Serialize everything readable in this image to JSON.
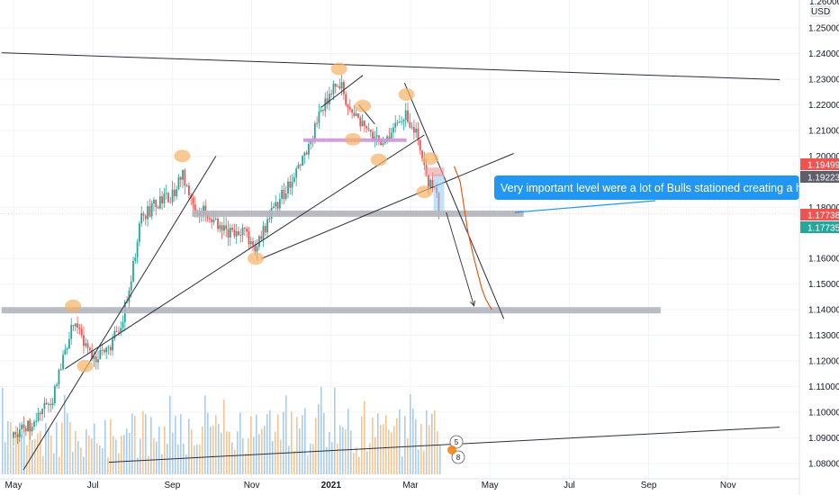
{
  "chart_data": {
    "type": "candlestick",
    "instrument_currency": "USD",
    "y_axis": {
      "range": [
        1.0765,
        1.2625
      ],
      "top_partial_label": "1.26000",
      "currency_label": "USD",
      "ticks": [
        "1.25000",
        "1.24000",
        "1.23000",
        "1.22000",
        "1.21000",
        "1.20000",
        "1.18000",
        "1.16000",
        "1.15000",
        "1.14000",
        "1.13000",
        "1.12000",
        "1.11000",
        "1.10000",
        "1.09000",
        "1.08000"
      ]
    },
    "x_axis": {
      "ticks": [
        {
          "label": "May",
          "bold": false,
          "month_index": 0
        },
        {
          "label": "Jul",
          "bold": false,
          "month_index": 2
        },
        {
          "label": "Sep",
          "bold": false,
          "month_index": 4
        },
        {
          "label": "Nov",
          "bold": false,
          "month_index": 6
        },
        {
          "label": "2021",
          "bold": true,
          "month_index": 8
        },
        {
          "label": "Mar",
          "bold": false,
          "month_index": 10
        },
        {
          "label": "May",
          "bold": false,
          "month_index": 12
        },
        {
          "label": "Jul",
          "bold": false,
          "month_index": 14
        },
        {
          "label": "Sep",
          "bold": false,
          "month_index": 16
        },
        {
          "label": "Nov",
          "bold": false,
          "month_index": 18
        }
      ]
    },
    "price_badges": [
      {
        "value": "1.19499",
        "color": "#ef5350"
      },
      {
        "value": "1.19223",
        "color": "#5d606b"
      },
      {
        "value": "1.17738",
        "color": "#ef5350"
      },
      {
        "value": "1.17735",
        "color": "#26a69a"
      }
    ],
    "annotation": {
      "text": "Very important level were a lot of Bulls stationed creating a heavy volume",
      "background": "#2196f3"
    },
    "levels": [
      {
        "name": "support-zone",
        "price": 1.1775,
        "month_start": 4.5,
        "month_end": 12.85,
        "color": "#b2b5be"
      },
      {
        "name": "lower-support",
        "price": 1.1398,
        "month_start": -0.3,
        "month_end": 16.3,
        "color": "#b2b5be"
      },
      {
        "name": "purple-level",
        "price": 1.2062,
        "month_start": 7.3,
        "month_end": 9.9,
        "color": "#ce93d8"
      }
    ],
    "trendlines": [
      {
        "name": "top-resistance-line",
        "from": [
          -0.3,
          1.2403
        ],
        "to": [
          19.3,
          1.2298
        ]
      },
      {
        "name": "volume-trendline",
        "from": [
          2.4,
          1.0805
        ],
        "to": [
          19.3,
          1.0942
        ]
      },
      {
        "name": "uptrend-line-1",
        "from": [
          0.25,
          1.0775
        ],
        "to": [
          5.1,
          1.2
        ]
      },
      {
        "name": "uptrend-line-2",
        "from": [
          1.3,
          1.117
        ],
        "to": [
          10.35,
          1.2082
        ]
      },
      {
        "name": "uptrend-line-3",
        "from": [
          6.25,
          1.16
        ],
        "to": [
          12.6,
          1.201
        ]
      },
      {
        "name": "downtrend-line",
        "from": [
          9.85,
          1.2285
        ],
        "to": [
          12.35,
          1.1365
        ]
      },
      {
        "name": "top-rising-line",
        "from": [
          7.75,
          1.219
        ],
        "to": [
          8.8,
          1.2315
        ]
      },
      {
        "name": "top-falling-line",
        "from": [
          8.7,
          1.22
        ],
        "to": [
          9.1,
          1.2125
        ]
      }
    ],
    "projection": {
      "arrow_from": [
        10.9,
        1.178
      ],
      "arrow_to": [
        11.6,
        1.1415
      ],
      "curve": [
        [
          11.1,
          1.196
        ],
        [
          11.25,
          1.19
        ],
        [
          11.45,
          1.17
        ],
        [
          11.6,
          1.16
        ],
        [
          11.8,
          1.148
        ],
        [
          11.9,
          1.144
        ],
        [
          12.05,
          1.14
        ]
      ]
    },
    "highlight_markers": [
      {
        "name": "marker-jun-peak",
        "month": 1.5,
        "price": 1.1415
      },
      {
        "name": "marker-jun-low",
        "month": 1.8,
        "price": 1.118
      },
      {
        "name": "marker-aug-peak",
        "month": 4.25,
        "price": 1.2
      },
      {
        "name": "marker-nov-low",
        "month": 6.1,
        "price": 1.16
      },
      {
        "name": "marker-jan-top",
        "month": 8.2,
        "price": 1.234
      },
      {
        "name": "marker-jan-mid",
        "month": 8.8,
        "price": 1.2195
      },
      {
        "name": "marker-jan-low",
        "month": 8.55,
        "price": 1.2065
      },
      {
        "name": "marker-feb-low",
        "month": 9.2,
        "price": 1.1985
      },
      {
        "name": "marker-feb-top",
        "month": 9.9,
        "price": 1.224
      },
      {
        "name": "marker-mar-low",
        "month": 10.35,
        "price": 1.186
      },
      {
        "name": "marker-mar-top",
        "month": 10.5,
        "price": 1.199
      }
    ],
    "volume_bars": "synthetic",
    "event_icons": [
      "5",
      "8"
    ],
    "grid": true
  }
}
